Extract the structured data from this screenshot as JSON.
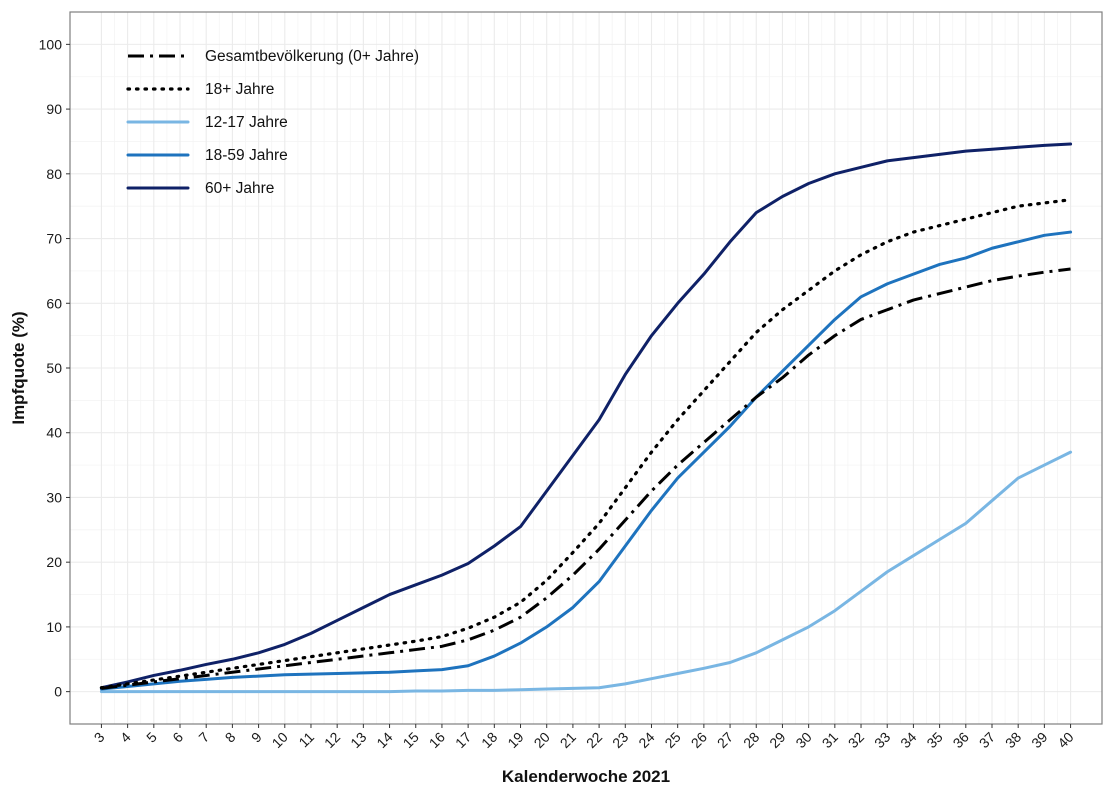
{
  "chart_data": {
    "type": "line",
    "title": "",
    "xlabel": "Kalenderwoche 2021",
    "ylabel": "Impfquote (%)",
    "xlim": [
      3,
      40
    ],
    "ylim": [
      0,
      100
    ],
    "x": [
      3,
      4,
      5,
      6,
      7,
      8,
      9,
      10,
      11,
      12,
      13,
      14,
      15,
      16,
      17,
      18,
      19,
      20,
      21,
      22,
      23,
      24,
      25,
      26,
      27,
      28,
      29,
      30,
      31,
      32,
      33,
      34,
      35,
      36,
      37,
      38,
      39,
      40
    ],
    "x_ticks": [
      3,
      4,
      5,
      6,
      7,
      8,
      9,
      10,
      11,
      12,
      13,
      14,
      15,
      16,
      17,
      18,
      19,
      20,
      21,
      22,
      23,
      24,
      25,
      26,
      27,
      28,
      29,
      30,
      31,
      32,
      33,
      34,
      35,
      36,
      37,
      38,
      39,
      40
    ],
    "y_ticks": [
      0,
      10,
      20,
      30,
      40,
      50,
      60,
      70,
      80,
      90,
      100
    ],
    "grid": true,
    "legend_position": "top-left",
    "series": [
      {
        "name": "Gesamtbevölkerung (0+ Jahre)",
        "color": "#000000",
        "dash": "dashdot",
        "values": [
          0.5,
          1.0,
          1.5,
          2.0,
          2.5,
          3.0,
          3.5,
          4.0,
          4.5,
          5.0,
          5.5,
          6.0,
          6.5,
          7.0,
          8.0,
          9.5,
          11.5,
          14.5,
          18.0,
          22.0,
          26.5,
          31.0,
          35.0,
          38.5,
          42.0,
          45.5,
          48.5,
          52.0,
          55.0,
          57.5,
          59.0,
          60.5,
          61.5,
          62.5,
          63.5,
          64.2,
          64.8,
          65.3
        ]
      },
      {
        "name": "18+ Jahre",
        "color": "#000000",
        "dash": "dotted",
        "values": [
          0.6,
          1.2,
          1.8,
          2.4,
          3.0,
          3.6,
          4.2,
          4.8,
          5.4,
          6.0,
          6.6,
          7.2,
          7.8,
          8.5,
          9.8,
          11.5,
          13.8,
          17.2,
          21.5,
          26.0,
          31.5,
          37.0,
          42.0,
          46.5,
          51.0,
          55.5,
          59.0,
          62.0,
          65.0,
          67.5,
          69.5,
          71.0,
          72.0,
          73.0,
          74.0,
          75.0,
          75.5,
          76.0
        ]
      },
      {
        "name": "12-17 Jahre",
        "color": "#79b6e3",
        "dash": "solid",
        "values": [
          0.0,
          0.0,
          0.0,
          0.0,
          0.0,
          0.0,
          0.0,
          0.0,
          0.0,
          0.0,
          0.0,
          0.0,
          0.1,
          0.1,
          0.2,
          0.2,
          0.3,
          0.4,
          0.5,
          0.6,
          1.2,
          2.0,
          2.8,
          3.6,
          4.5,
          6.0,
          8.0,
          10.0,
          12.5,
          15.5,
          18.5,
          21.0,
          23.5,
          26.0,
          29.5,
          33.0,
          35.0,
          37.0
        ]
      },
      {
        "name": "18-59 Jahre",
        "color": "#1e73be",
        "dash": "solid",
        "values": [
          0.4,
          0.8,
          1.2,
          1.6,
          1.9,
          2.2,
          2.4,
          2.6,
          2.7,
          2.8,
          2.9,
          3.0,
          3.2,
          3.4,
          4.0,
          5.5,
          7.5,
          10.0,
          13.0,
          17.0,
          22.5,
          28.0,
          33.0,
          37.0,
          41.0,
          45.5,
          49.5,
          53.5,
          57.5,
          61.0,
          63.0,
          64.5,
          66.0,
          67.0,
          68.5,
          69.5,
          70.5,
          71.0
        ]
      },
      {
        "name": "60+ Jahre",
        "color": "#0f2167",
        "dash": "solid",
        "values": [
          0.6,
          1.5,
          2.5,
          3.3,
          4.2,
          5.0,
          6.0,
          7.3,
          9.0,
          11.0,
          13.0,
          15.0,
          16.5,
          18.0,
          19.8,
          22.5,
          25.5,
          31.0,
          36.5,
          42.0,
          49.0,
          55.0,
          60.0,
          64.5,
          69.5,
          74.0,
          76.5,
          78.5,
          80.0,
          81.0,
          82.0,
          82.5,
          83.0,
          83.5,
          83.8,
          84.1,
          84.4,
          84.6
        ]
      }
    ]
  }
}
